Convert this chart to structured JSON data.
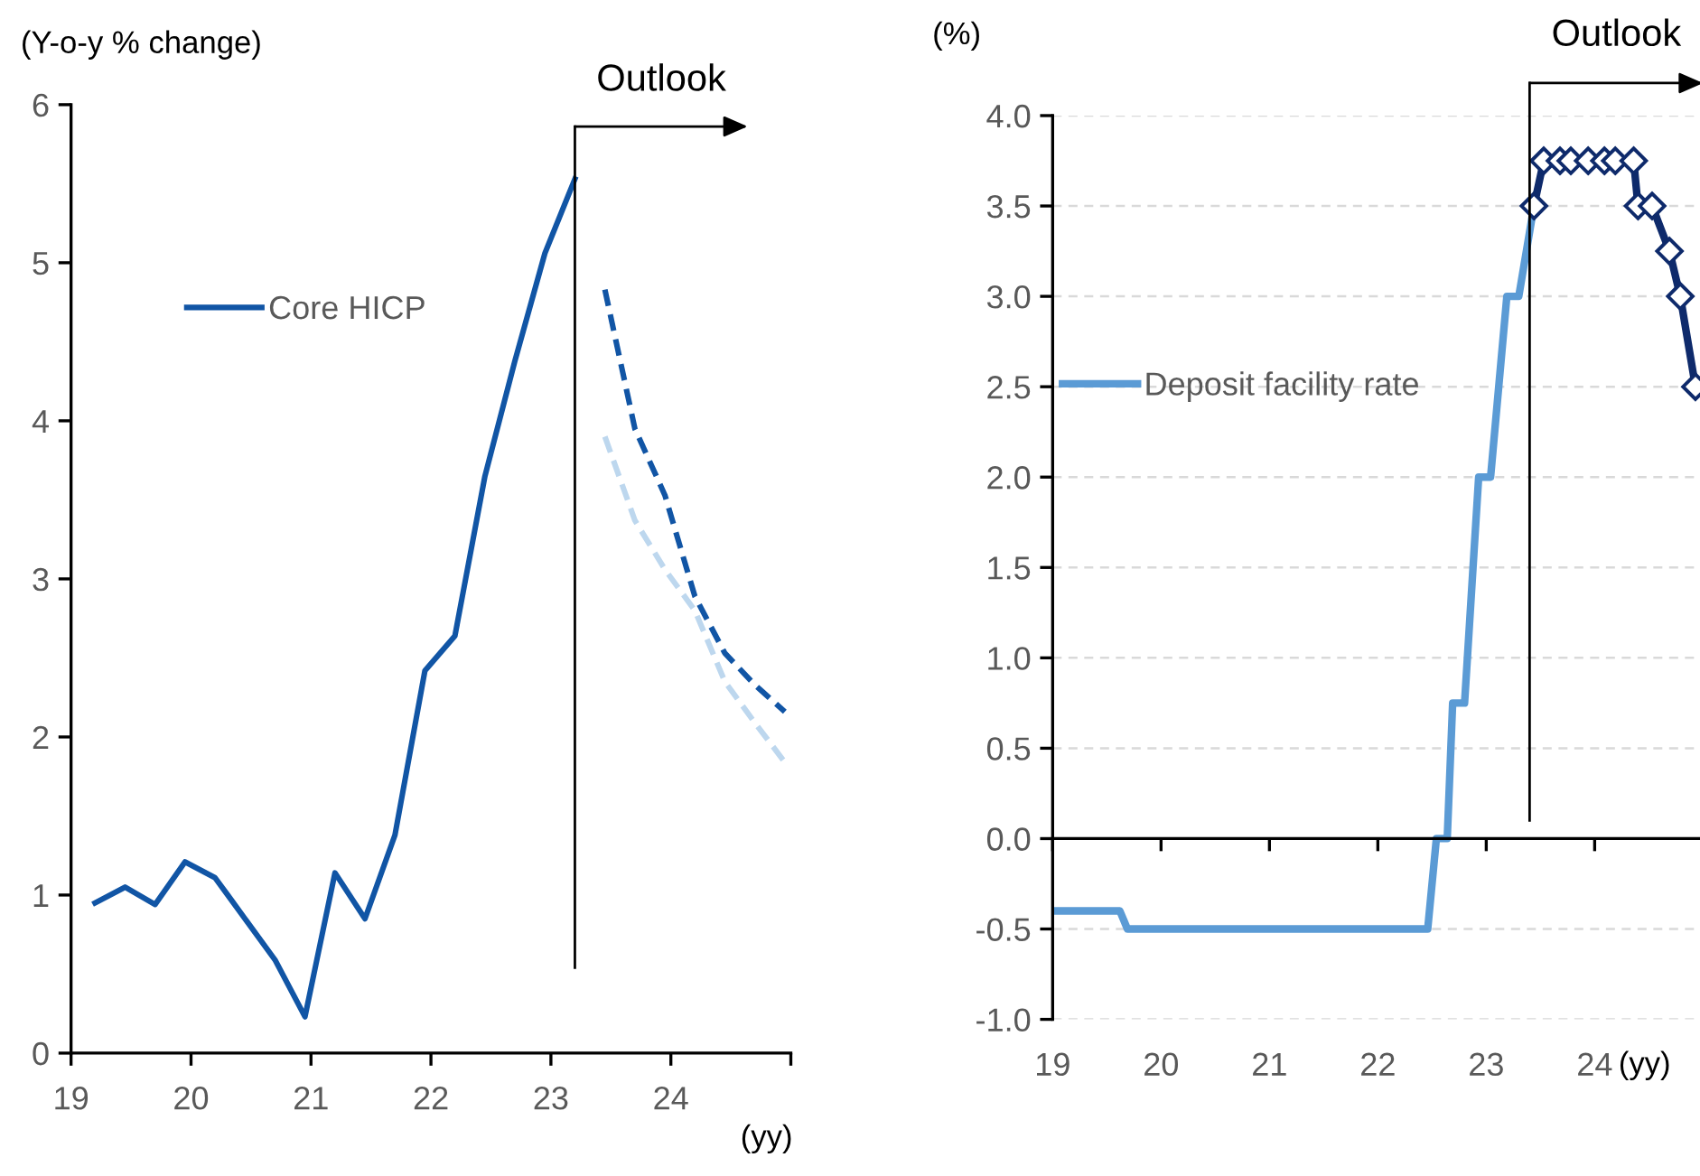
{
  "chart_data": [
    {
      "type": "line",
      "ylabel": "(Y-o-y % change)",
      "xlabel": "(yy)",
      "xlim": [
        19,
        25
      ],
      "ylim": [
        0,
        6
      ],
      "xticks": [
        19,
        20,
        21,
        22,
        23,
        24,
        {
          "value": 25,
          "label": null
        }
      ],
      "yticks": [
        0,
        1,
        2,
        3,
        4,
        5,
        6
      ],
      "grid": false,
      "legend": "upper left",
      "marker": "none",
      "series": [
        {
          "name": "Core HICP",
          "color": "#1155a5",
          "line_style": "solid",
          "x": [
            19.2,
            19.45,
            19.7,
            19.95,
            20.2,
            20.45,
            20.7,
            20.95,
            21.2,
            21.45,
            21.7,
            21.95,
            22.2,
            22.45,
            22.7,
            22.95,
            23.2
          ],
          "values": [
            0.95,
            1.05,
            0.94,
            1.21,
            1.11,
            0.85,
            0.59,
            0.23,
            1.14,
            0.85,
            1.38,
            2.42,
            2.64,
            3.65,
            4.38,
            5.06,
            5.53
          ]
        },
        {
          "color": "#1155a5",
          "line_style": "dashed",
          "x": [
            23.45,
            23.7,
            23.95,
            24.2,
            24.45,
            24.7,
            24.95
          ],
          "values": [
            4.83,
            3.95,
            3.53,
            2.89,
            2.53,
            2.33,
            2.16
          ]
        },
        {
          "color": "#bdd7ee",
          "line_style": "dashed",
          "x": [
            23.45,
            23.7,
            23.95,
            24.2,
            24.45,
            24.7,
            24.95
          ],
          "values": [
            3.9,
            3.37,
            3.06,
            2.8,
            2.35,
            2.09,
            1.84
          ]
        }
      ],
      "ref_lines": [
        {
          "axis": "x",
          "value": 23.2,
          "label": "Outlook"
        }
      ]
    },
    {
      "type": "line",
      "ylabel": "(%)",
      "xlabel": "(yy)",
      "xlim": [
        19,
        25
      ],
      "ylim": [
        -1,
        4
      ],
      "xticks": [
        19,
        20,
        21,
        22,
        23,
        24,
        {
          "value": 25,
          "label": null
        }
      ],
      "yticks": [
        {
          "value": -1,
          "label": "-1.0"
        },
        {
          "value": -0.5,
          "label": "-0.5"
        },
        {
          "value": 0,
          "label": "0.0"
        },
        {
          "value": 0.5,
          "label": "0.5"
        },
        {
          "value": 1,
          "label": "1.0"
        },
        {
          "value": 1.5,
          "label": "1.5"
        },
        {
          "value": 2,
          "label": "2.0"
        },
        {
          "value": 2.5,
          "label": "2.5"
        },
        {
          "value": 3,
          "label": "3.0"
        },
        {
          "value": 3.5,
          "label": "3.5"
        },
        {
          "value": 4,
          "label": "4.0"
        }
      ],
      "grid": "y",
      "legend": "center left",
      "series": [
        {
          "name": "Deposit facility rate",
          "color": "#5b9bd5",
          "marker": "none",
          "x": [
            19.0,
            19.62,
            19.69,
            22.46,
            22.54,
            22.64,
            22.69,
            22.8,
            22.93,
            23.04,
            23.19,
            23.3,
            23.44
          ],
          "values": [
            -0.4,
            -0.4,
            -0.5,
            -0.5,
            0.0,
            0.0,
            0.75,
            0.75,
            2.0,
            2.0,
            3.0,
            3.0,
            3.5
          ]
        },
        {
          "color": "#0e2a6b",
          "marker": "diamond",
          "x": [
            23.44,
            23.53,
            23.68,
            23.78,
            23.94,
            24.09,
            24.19,
            24.36,
            24.4,
            24.53,
            24.69,
            24.79,
            24.93
          ],
          "values": [
            3.5,
            3.75,
            3.75,
            3.75,
            3.75,
            3.75,
            3.75,
            3.75,
            3.5,
            3.5,
            3.25,
            3.0,
            2.5
          ]
        }
      ],
      "ref_lines": [
        {
          "axis": "x",
          "value": 23.4,
          "label": "Outlook"
        }
      ]
    }
  ]
}
